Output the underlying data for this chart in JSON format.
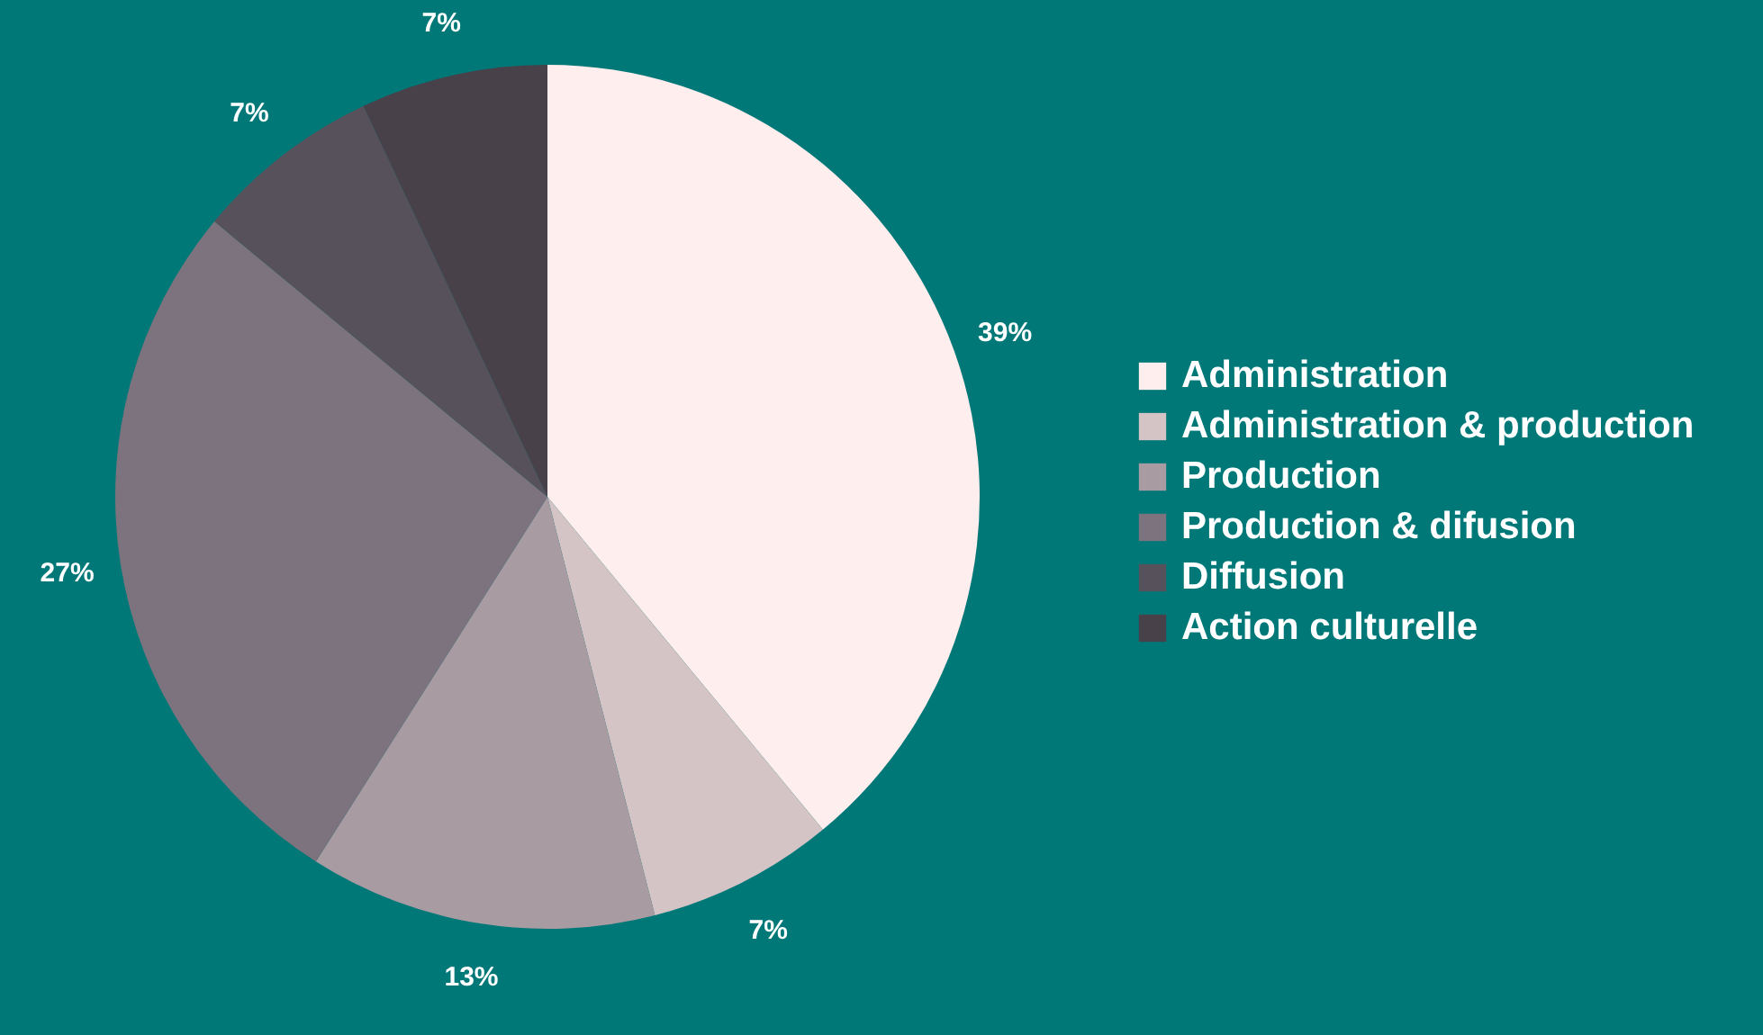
{
  "chart_data": {
    "type": "pie",
    "categories": [
      "Administration",
      "Administration & production",
      "Production",
      "Production & difusion",
      "Diffusion",
      "Action culturelle"
    ],
    "values": [
      39,
      7,
      13,
      27,
      7,
      7
    ],
    "colors": [
      "#feeeed",
      "#d4c4c6",
      "#a89ba2",
      "#7d737e",
      "#57515c",
      "#48414a"
    ],
    "value_labels": [
      "39%",
      "7%",
      "13%",
      "27%",
      "7%",
      "7%"
    ],
    "legend": "right"
  }
}
